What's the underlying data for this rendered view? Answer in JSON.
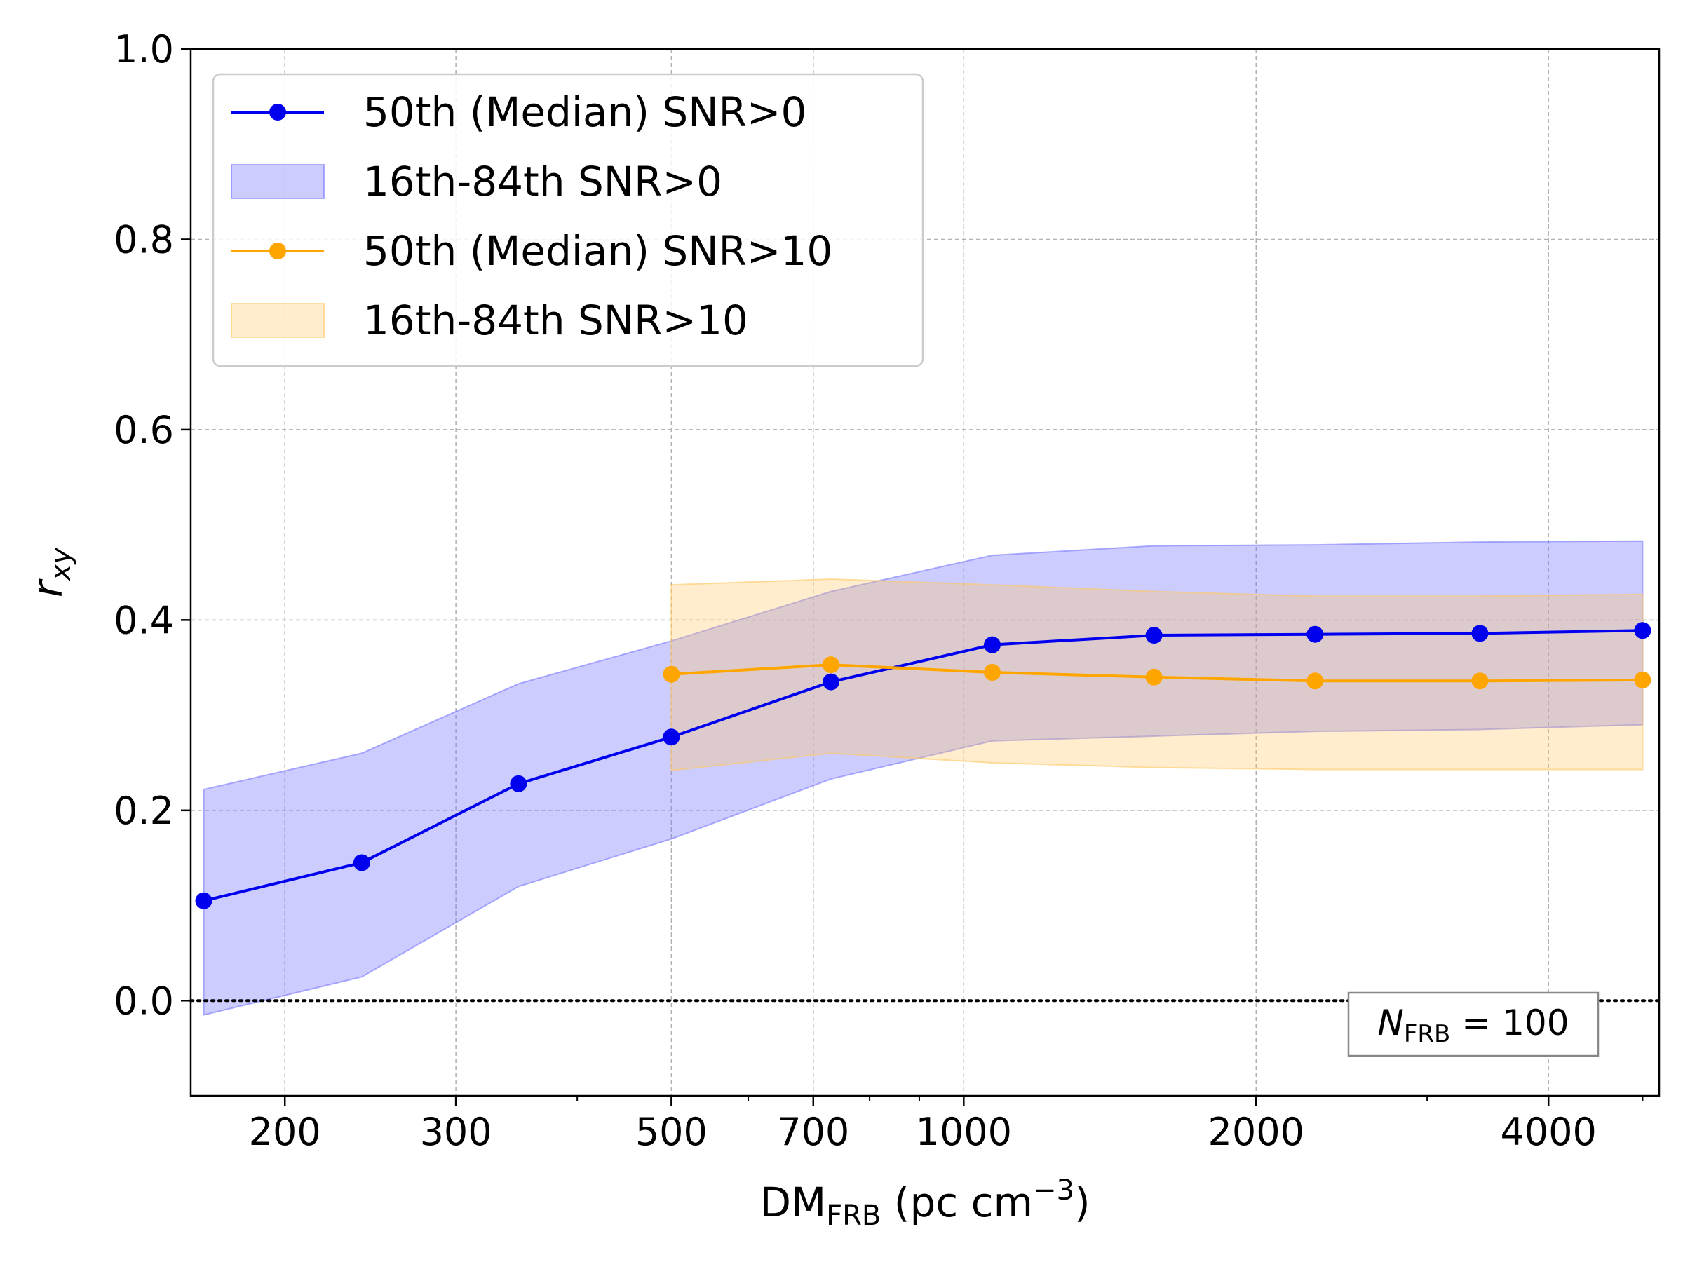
{
  "chart_data": {
    "type": "line",
    "xscale": "log",
    "xlim": [
      160,
      5200
    ],
    "ylim": [
      -0.1,
      1.0
    ],
    "xlabel_main": "DM",
    "xlabel_sub": "FRB",
    "xlabel_unit_open": " (pc cm",
    "xlabel_unit_sup": "−3",
    "xlabel_unit_close": ")",
    "ylabel_main": "r",
    "ylabel_sub": "xy",
    "x_ticks": [
      200,
      300,
      500,
      700,
      1000,
      2000,
      4000
    ],
    "x_tick_labels": [
      "200",
      "300",
      "500",
      "700",
      "1000",
      "2000",
      "4000"
    ],
    "x_minor_ticks": [
      400,
      600,
      800,
      900,
      3000,
      5000
    ],
    "y_ticks": [
      0.0,
      0.2,
      0.4,
      0.6,
      0.8,
      1.0
    ],
    "y_tick_labels": [
      "0.0",
      "0.2",
      "0.4",
      "0.6",
      "0.8",
      "1.0"
    ],
    "grid": true,
    "reference_line": {
      "y": 0.0,
      "style": "dotted"
    },
    "series": [
      {
        "name": "50th (Median) SNR>0",
        "color": "#0000ee",
        "x": [
          165,
          240,
          348,
          500,
          730,
          1070,
          1570,
          2300,
          3400,
          5000
        ],
        "median": [
          0.105,
          0.145,
          0.228,
          0.277,
          0.335,
          0.374,
          0.384,
          0.385,
          0.386,
          0.389
        ],
        "band_name": "16th-84th  SNR>0",
        "band_color": "#7878ff",
        "lower": [
          -0.015,
          0.025,
          0.12,
          0.17,
          0.233,
          0.273,
          0.278,
          0.283,
          0.285,
          0.29
        ],
        "upper": [
          0.222,
          0.26,
          0.333,
          0.378,
          0.43,
          0.468,
          0.478,
          0.479,
          0.482,
          0.483
        ]
      },
      {
        "name": "50th (Median) SNR>10",
        "color": "#ffa500",
        "x": [
          500,
          730,
          1070,
          1570,
          2300,
          3400,
          5000
        ],
        "median": [
          0.343,
          0.353,
          0.345,
          0.34,
          0.336,
          0.336,
          0.337
        ],
        "band_name": "16th-84th  SNR>10",
        "band_color": "#ffc864",
        "lower": [
          0.242,
          0.26,
          0.25,
          0.245,
          0.243,
          0.243,
          0.243
        ],
        "upper": [
          0.437,
          0.443,
          0.437,
          0.43,
          0.425,
          0.425,
          0.427
        ]
      }
    ],
    "legend_position": "top-left",
    "annotation": {
      "main": "N",
      "sub": "FRB",
      "rest": " = 100",
      "position": "bottom-right"
    }
  }
}
